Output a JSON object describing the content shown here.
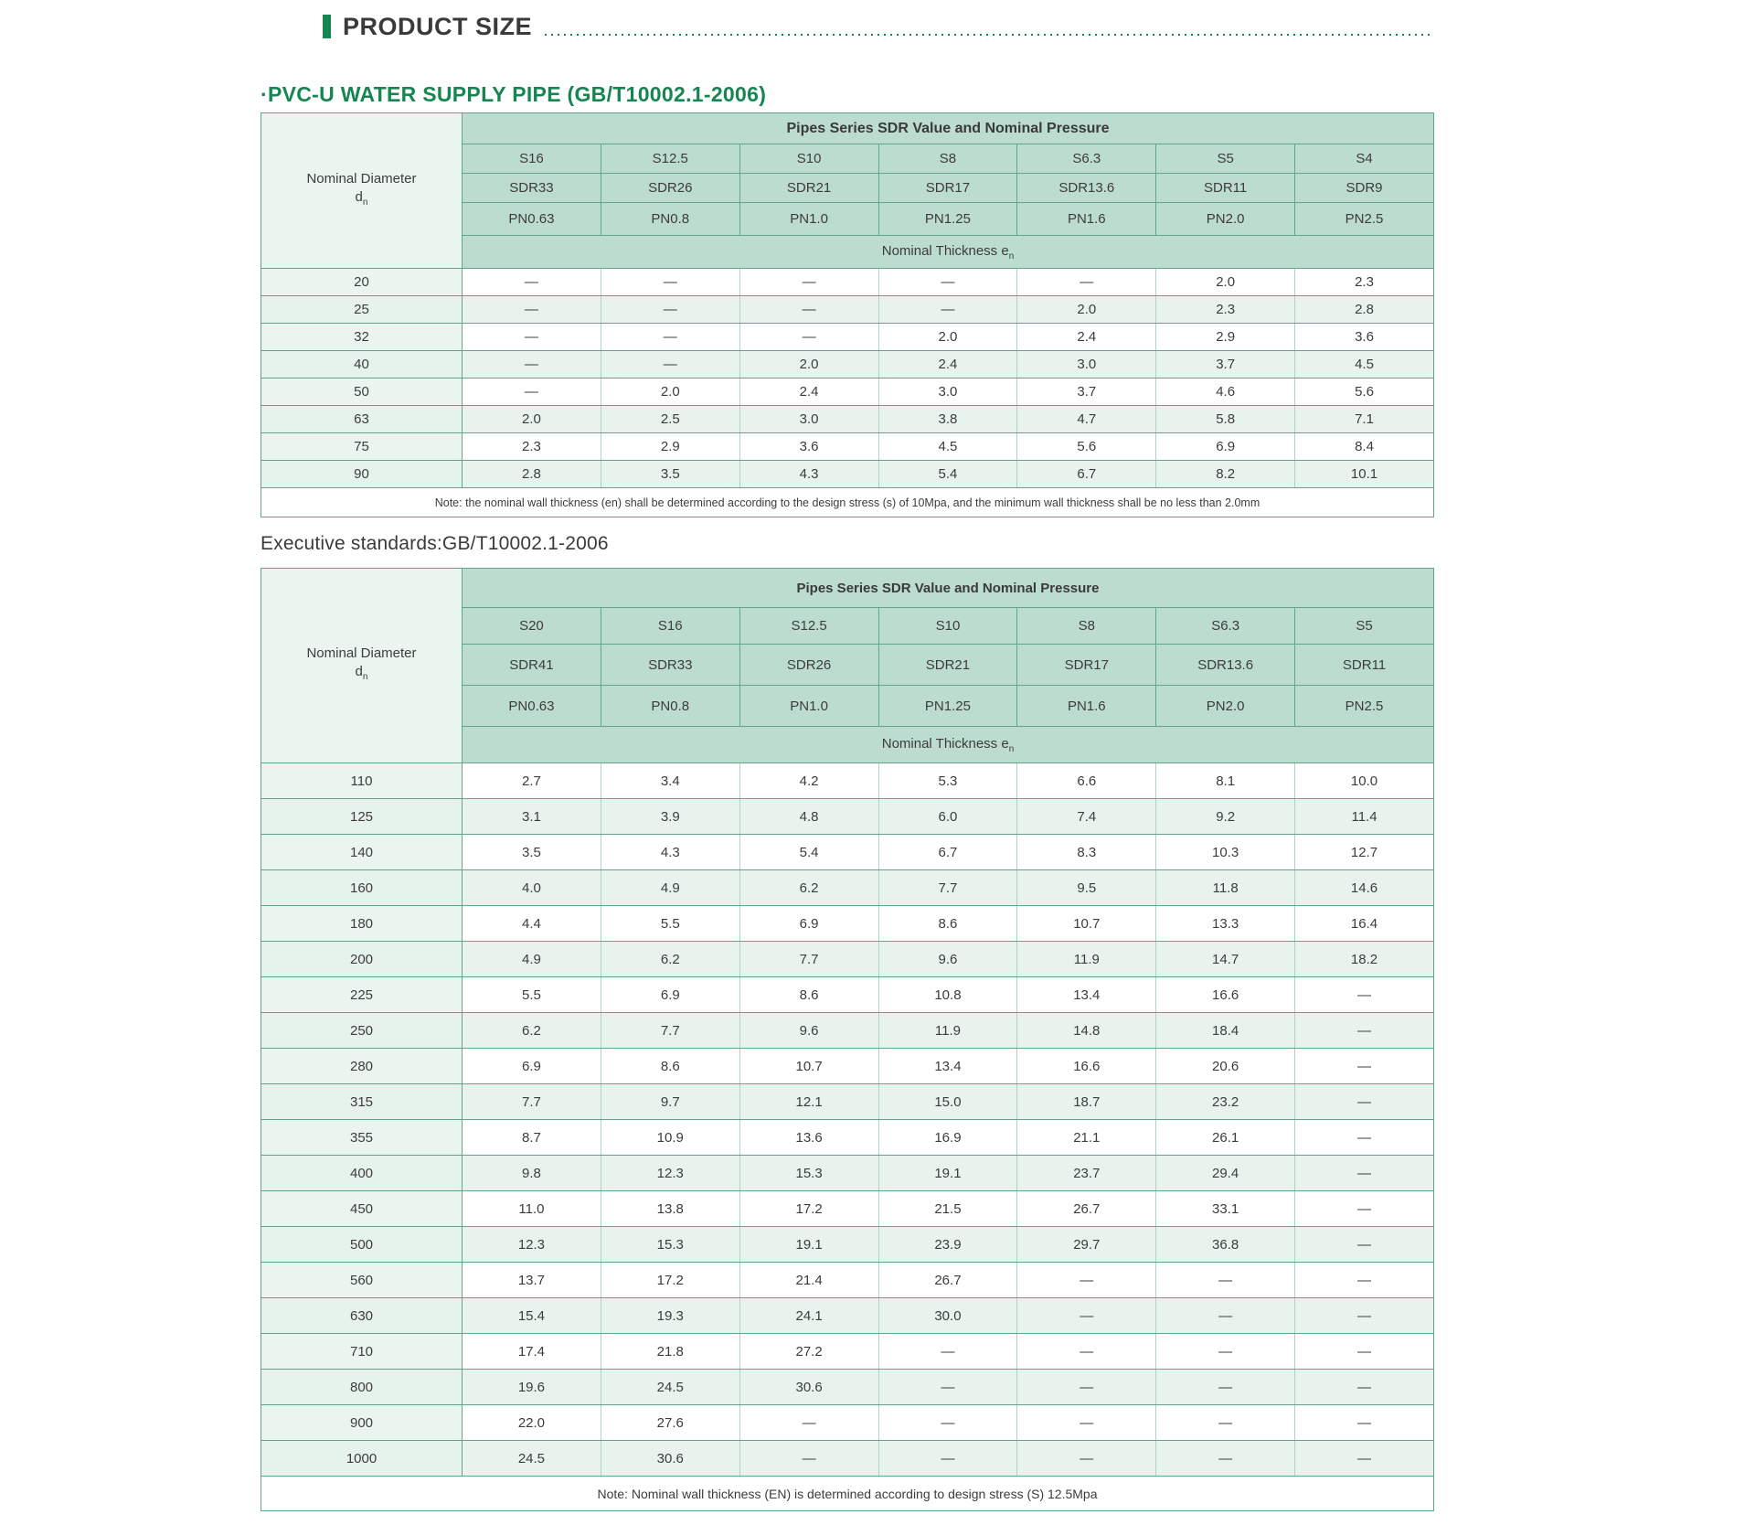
{
  "page": {
    "title": "PRODUCT SIZE",
    "subtitle": "·PVC-U WATER SUPPLY PIPE (GB/T10002.1-2006)",
    "executive_standards": "Executive standards:GB/T10002.1-2006",
    "accent_color": "#15864f",
    "header_bg_color": "#bcdccf",
    "row_tint_color": "#e8f3ee"
  },
  "table1": {
    "group_header": "Pipes Series SDR Value and Nominal Pressure",
    "diameter_label_line1": "Nominal Diameter",
    "diameter_label_line2": "d",
    "diameter_sub": "n",
    "thickness_label": "Nominal Thickness e",
    "thickness_sub": "n",
    "s_row": [
      "S16",
      "S12.5",
      "S10",
      "S8",
      "S6.3",
      "S5",
      "S4"
    ],
    "sdr_row": [
      "SDR33",
      "SDR26",
      "SDR21",
      "SDR17",
      "SDR13.6",
      "SDR11",
      "SDR9"
    ],
    "pn_row": [
      "PN0.63",
      "PN0.8",
      "PN1.0",
      "PN1.25",
      "PN1.6",
      "PN2.0",
      "PN2.5"
    ],
    "rows": [
      [
        "20",
        "—",
        "—",
        "—",
        "—",
        "—",
        "2.0",
        "2.3"
      ],
      [
        "25",
        "—",
        "—",
        "—",
        "—",
        "2.0",
        "2.3",
        "2.8"
      ],
      [
        "32",
        "—",
        "—",
        "—",
        "2.0",
        "2.4",
        "2.9",
        "3.6"
      ],
      [
        "40",
        "—",
        "—",
        "2.0",
        "2.4",
        "3.0",
        "3.7",
        "4.5"
      ],
      [
        "50",
        "—",
        "2.0",
        "2.4",
        "3.0",
        "3.7",
        "4.6",
        "5.6"
      ],
      [
        "63",
        "2.0",
        "2.5",
        "3.0",
        "3.8",
        "4.7",
        "5.8",
        "7.1"
      ],
      [
        "75",
        "2.3",
        "2.9",
        "3.6",
        "4.5",
        "5.6",
        "6.9",
        "8.4"
      ],
      [
        "90",
        "2.8",
        "3.5",
        "4.3",
        "5.4",
        "6.7",
        "8.2",
        "10.1"
      ]
    ],
    "note": "Note: the nominal wall thickness (en) shall be determined according to the design stress (s) of 10Mpa, and the minimum wall thickness shall be no less than 2.0mm"
  },
  "table2": {
    "group_header": "Pipes Series SDR Value and Nominal Pressure",
    "diameter_label_line1": "Nominal Diameter",
    "diameter_label_line2": "d",
    "diameter_sub": "n",
    "thickness_label": "Nominal Thickness e",
    "thickness_sub": "n",
    "s_row": [
      "S20",
      "S16",
      "S12.5",
      "S10",
      "S8",
      "S6.3",
      "S5"
    ],
    "sdr_row": [
      "SDR41",
      "SDR33",
      "SDR26",
      "SDR21",
      "SDR17",
      "SDR13.6",
      "SDR11"
    ],
    "pn_row": [
      "PN0.63",
      "PN0.8",
      "PN1.0",
      "PN1.25",
      "PN1.6",
      "PN2.0",
      "PN2.5"
    ],
    "rows": [
      [
        "110",
        "2.7",
        "3.4",
        "4.2",
        "5.3",
        "6.6",
        "8.1",
        "10.0"
      ],
      [
        "125",
        "3.1",
        "3.9",
        "4.8",
        "6.0",
        "7.4",
        "9.2",
        "11.4"
      ],
      [
        "140",
        "3.5",
        "4.3",
        "5.4",
        "6.7",
        "8.3",
        "10.3",
        "12.7"
      ],
      [
        "160",
        "4.0",
        "4.9",
        "6.2",
        "7.7",
        "9.5",
        "11.8",
        "14.6"
      ],
      [
        "180",
        "4.4",
        "5.5",
        "6.9",
        "8.6",
        "10.7",
        "13.3",
        "16.4"
      ],
      [
        "200",
        "4.9",
        "6.2",
        "7.7",
        "9.6",
        "11.9",
        "14.7",
        "18.2"
      ],
      [
        "225",
        "5.5",
        "6.9",
        "8.6",
        "10.8",
        "13.4",
        "16.6",
        "—"
      ],
      [
        "250",
        "6.2",
        "7.7",
        "9.6",
        "11.9",
        "14.8",
        "18.4",
        "—"
      ],
      [
        "280",
        "6.9",
        "8.6",
        "10.7",
        "13.4",
        "16.6",
        "20.6",
        "—"
      ],
      [
        "315",
        "7.7",
        "9.7",
        "12.1",
        "15.0",
        "18.7",
        "23.2",
        "—"
      ],
      [
        "355",
        "8.7",
        "10.9",
        "13.6",
        "16.9",
        "21.1",
        "26.1",
        "—"
      ],
      [
        "400",
        "9.8",
        "12.3",
        "15.3",
        "19.1",
        "23.7",
        "29.4",
        "—"
      ],
      [
        "450",
        "11.0",
        "13.8",
        "17.2",
        "21.5",
        "26.7",
        "33.1",
        "—"
      ],
      [
        "500",
        "12.3",
        "15.3",
        "19.1",
        "23.9",
        "29.7",
        "36.8",
        "—"
      ],
      [
        "560",
        "13.7",
        "17.2",
        "21.4",
        "26.7",
        "—",
        "—",
        "—"
      ],
      [
        "630",
        "15.4",
        "19.3",
        "24.1",
        "30.0",
        "—",
        "—",
        "—"
      ],
      [
        "710",
        "17.4",
        "21.8",
        "27.2",
        "—",
        "—",
        "—",
        "—"
      ],
      [
        "800",
        "19.6",
        "24.5",
        "30.6",
        "—",
        "—",
        "—",
        "—"
      ],
      [
        "900",
        "22.0",
        "27.6",
        "—",
        "—",
        "—",
        "—",
        "—"
      ],
      [
        "1000",
        "24.5",
        "30.6",
        "—",
        "—",
        "—",
        "—",
        "—"
      ]
    ],
    "note": "Note: Nominal wall thickness (EN) is determined according to design stress (S) 12.5Mpa"
  }
}
